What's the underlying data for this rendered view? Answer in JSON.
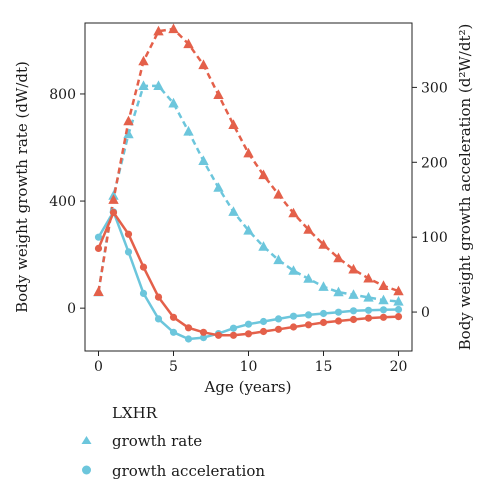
{
  "chart_data": {
    "type": "line",
    "xlabel": "Age (years)",
    "ylabel_left": "Body weight growth rate (dW/dt)",
    "ylabel_right": "Body weight growth acceleration (d²W/dt²)",
    "x_ticks": [
      0,
      5,
      10,
      15,
      20
    ],
    "y_left_ticks": [
      0,
      400,
      800
    ],
    "y_right_ticks": [
      0,
      100,
      200,
      300
    ],
    "xlim": [
      -0.9,
      20.9
    ],
    "ylim_left": [
      -160,
      1065
    ],
    "ylim_right": [
      -52,
      386
    ],
    "legend": {
      "title": "LXHR",
      "entries": [
        {
          "label": "growth rate",
          "marker": "triangle"
        },
        {
          "label": "growth acceleration",
          "marker": "circle"
        }
      ],
      "position": "bottom"
    },
    "colors": {
      "cyan": "#6cc6dc",
      "red": "#e4604a"
    },
    "grid": false,
    "series": [
      {
        "color": "#6cc6dc",
        "marker": "triangle",
        "line": "dashed",
        "axis": "left",
        "x": [
          0,
          1,
          2,
          3,
          4,
          5,
          6,
          7,
          8,
          9,
          10,
          11,
          12,
          13,
          14,
          15,
          16,
          17,
          18,
          19,
          20
        ],
        "values": [
          60,
          420,
          650,
          830,
          830,
          765,
          660,
          550,
          450,
          360,
          290,
          230,
          180,
          140,
          110,
          80,
          60,
          50,
          40,
          30,
          25
        ]
      },
      {
        "color": "#e4604a",
        "marker": "triangle",
        "line": "dashed",
        "axis": "right",
        "x": [
          0,
          1,
          2,
          3,
          4,
          5,
          6,
          7,
          8,
          9,
          10,
          11,
          12,
          13,
          14,
          15,
          16,
          17,
          18,
          19,
          20
        ],
        "values": [
          27,
          150,
          255,
          335,
          375,
          378,
          358,
          330,
          290,
          250,
          212,
          183,
          157,
          132,
          110,
          90,
          72,
          57,
          45,
          35,
          28
        ]
      },
      {
        "color": "#6cc6dc",
        "marker": "circle",
        "line": "solid",
        "axis": "left",
        "x": [
          0,
          1,
          2,
          3,
          4,
          5,
          6,
          7,
          8,
          9,
          10,
          11,
          12,
          13,
          14,
          15,
          16,
          17,
          18,
          19,
          20
        ],
        "values": [
          265,
          360,
          210,
          55,
          -40,
          -90,
          -115,
          -110,
          -95,
          -75,
          -60,
          -50,
          -40,
          -30,
          -25,
          -20,
          -15,
          -10,
          -8,
          -6,
          -5
        ]
      },
      {
        "color": "#e4604a",
        "marker": "circle",
        "line": "solid",
        "axis": "right",
        "x": [
          0,
          1,
          2,
          3,
          4,
          5,
          6,
          7,
          8,
          9,
          10,
          11,
          12,
          13,
          14,
          15,
          16,
          17,
          18,
          19,
          20
        ],
        "values": [
          85,
          133,
          104,
          60,
          20,
          -7,
          -21,
          -27,
          -31,
          -31,
          -29,
          -26,
          -23,
          -20,
          -17,
          -14,
          -12,
          -10,
          -8,
          -7,
          -6
        ]
      }
    ]
  }
}
